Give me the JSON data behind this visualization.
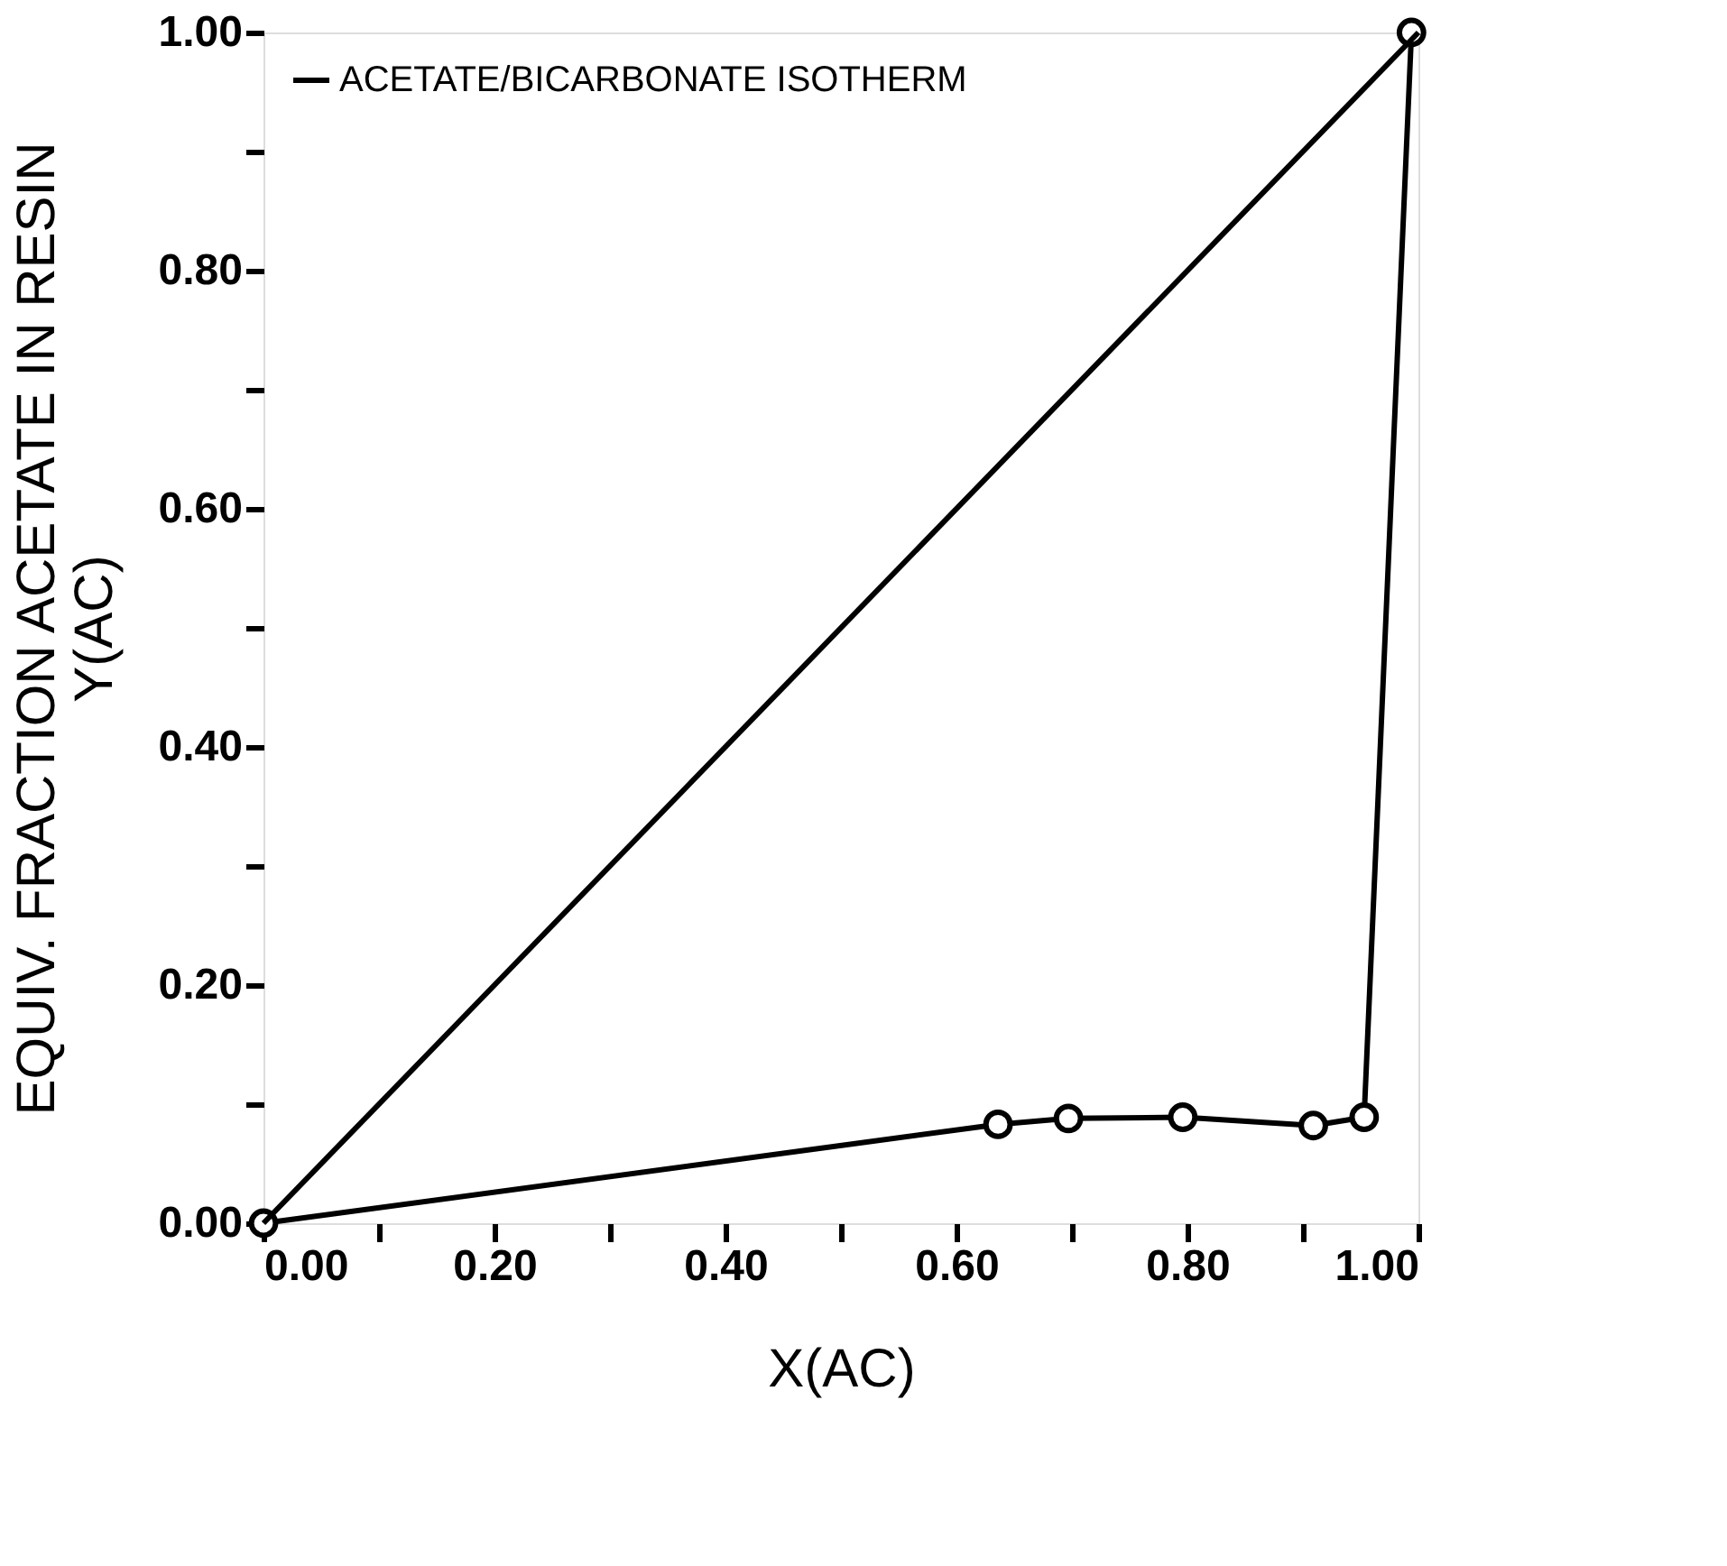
{
  "chart_data": {
    "type": "line",
    "xlabel": "X(AC)",
    "ylabel": "EQUIV. FRACTION ACETATE IN RESIN\nY(AC)",
    "series": [
      {
        "name": "ACETATE/BICARBONATE ISOTHERM",
        "color": "#000000",
        "marker": "circle",
        "x": [
          0,
          0.636,
          0.697,
          0.796,
          0.909,
          0.953,
          0.994
        ],
        "values": [
          0,
          0.083,
          0.088,
          0.089,
          0.082,
          0.089,
          1.0
        ]
      },
      {
        "type": "line",
        "color": "#000000",
        "marker": "none",
        "x": [
          0,
          1
        ],
        "values": [
          0,
          1
        ]
      }
    ],
    "xlim": [
      0,
      1
    ],
    "ylim": [
      0,
      1
    ],
    "xticks": [
      {
        "value": 0,
        "label": "0.00"
      },
      {
        "value": 0.1,
        "label": null
      },
      {
        "value": 0.2,
        "label": "0.20"
      },
      {
        "value": 0.3,
        "label": null
      },
      {
        "value": 0.4,
        "label": "0.40"
      },
      {
        "value": 0.5,
        "label": null
      },
      {
        "value": 0.6,
        "label": "0.60"
      },
      {
        "value": 0.7,
        "label": null
      },
      {
        "value": 0.8,
        "label": "0.80"
      },
      {
        "value": 0.9,
        "label": null
      },
      {
        "value": 1,
        "label": "1.00"
      }
    ],
    "yticks": [
      {
        "value": 0,
        "label": "0.00"
      },
      {
        "value": 0.1,
        "label": null
      },
      {
        "value": 0.2,
        "label": "0.20"
      },
      {
        "value": 0.3,
        "label": null
      },
      {
        "value": 0.4,
        "label": "0.40"
      },
      {
        "value": 0.5,
        "label": null
      },
      {
        "value": 0.6,
        "label": "0.60"
      },
      {
        "value": 0.7,
        "label": null
      },
      {
        "value": 0.8,
        "label": "0.80"
      },
      {
        "value": 0.9,
        "label": null
      },
      {
        "value": 1,
        "label": "1.00"
      }
    ],
    "grid": false,
    "legend": "top left"
  }
}
